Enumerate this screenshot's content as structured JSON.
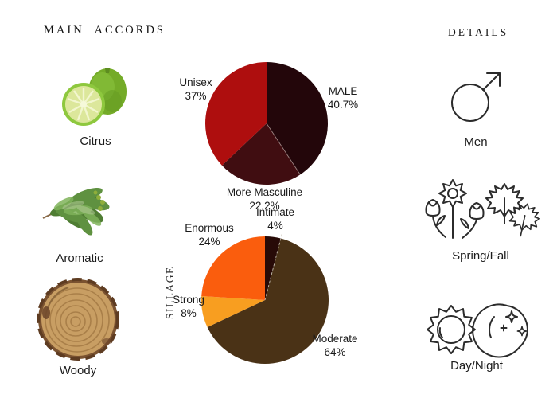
{
  "headings": {
    "main_accords": "MAIN ACCORDS",
    "details": "DETAILS"
  },
  "main_accords": {
    "items": [
      {
        "label": "Citrus",
        "icon": "bergamot-citrus-image"
      },
      {
        "label": "Aromatic",
        "icon": "conifer-sprig-image"
      },
      {
        "label": "Woody",
        "icon": "wood-slice-image"
      }
    ]
  },
  "details": {
    "items": [
      {
        "label": "Men",
        "icon": "male-symbol-icon"
      },
      {
        "label": "Spring/Fall",
        "icon": "flowers-and-maple-leaves-icon"
      },
      {
        "label": "Day/Night",
        "icon": "sun-and-moon-icon"
      }
    ]
  },
  "chart_data": [
    {
      "type": "pie",
      "name": "gender-votes",
      "start_angle_deg": 0,
      "direction": "clockwise",
      "legend_position": "outside-labels",
      "slices": [
        {
          "label": "MALE",
          "value": 40.7,
          "value_label": "40.7%",
          "color": "#23060a"
        },
        {
          "label": "More Masculine",
          "value": 22.2,
          "value_label": "22.2%",
          "color": "#400d11"
        },
        {
          "label": "Unisex",
          "value": 37.0,
          "value_label": "37%",
          "color": "#ae0e0e"
        }
      ]
    },
    {
      "type": "pie",
      "name": "sillage",
      "title": "SILLAGE",
      "start_angle_deg": 0,
      "direction": "clockwise",
      "legend_position": "outside-labels",
      "slices": [
        {
          "label": "Intimate",
          "value": 4,
          "value_label": "4%",
          "color": "#270a07"
        },
        {
          "label": "Moderate",
          "value": 64,
          "value_label": "64%",
          "color": "#4a3216"
        },
        {
          "label": "Strong",
          "value": 8,
          "value_label": "8%",
          "color": "#f89e20"
        },
        {
          "label": "Enormous",
          "value": 24,
          "value_label": "24%",
          "color": "#fa5d0d"
        }
      ]
    }
  ]
}
